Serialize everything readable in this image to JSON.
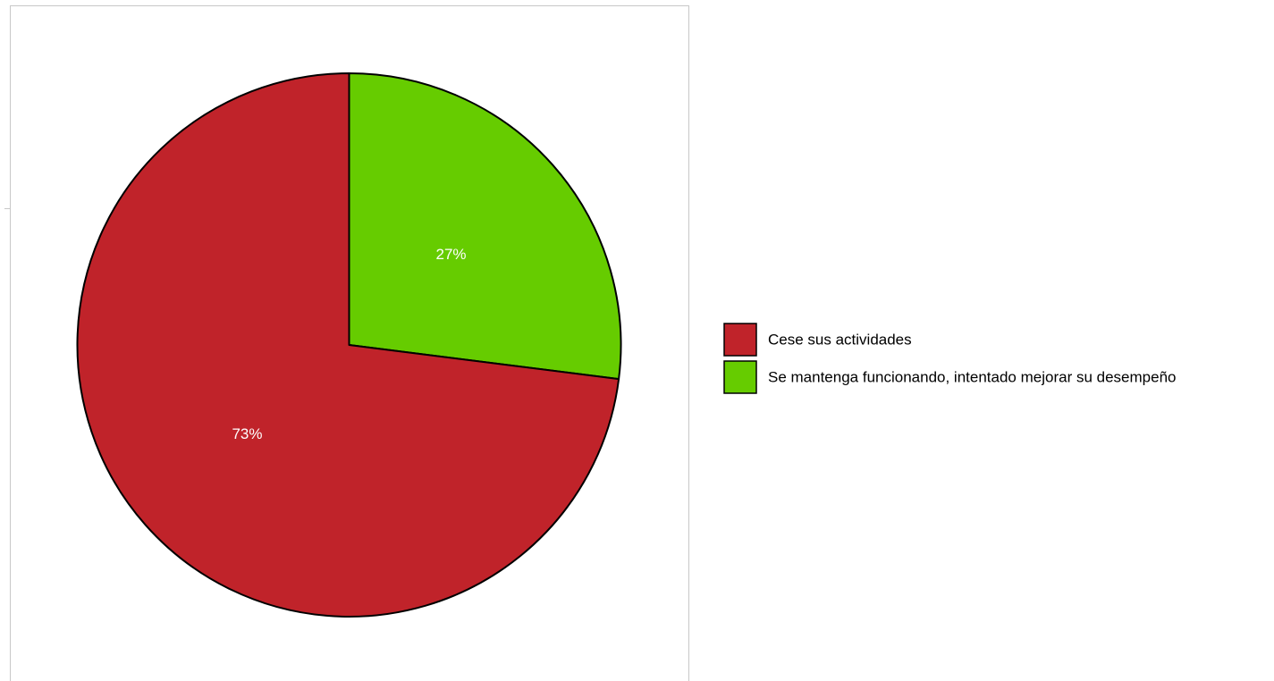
{
  "chart_data": {
    "type": "pie",
    "slices": [
      {
        "label": "Cese sus actividades",
        "value": 73,
        "display": "73%",
        "color": "#c0232a"
      },
      {
        "label": "Se mantenga funcionando, intentado mejorar su desempeño",
        "value": 27,
        "display": "27%",
        "color": "#66cc00"
      }
    ],
    "start": "12 o'clock",
    "direction": "clockwise",
    "legend": {
      "placement": "right",
      "items": [
        {
          "label": "Cese sus actividades",
          "color": "#c0232a"
        },
        {
          "label": "Se mantenga funcionando, intentado mejorar su desempeño",
          "color": "#66cc00"
        }
      ]
    }
  }
}
